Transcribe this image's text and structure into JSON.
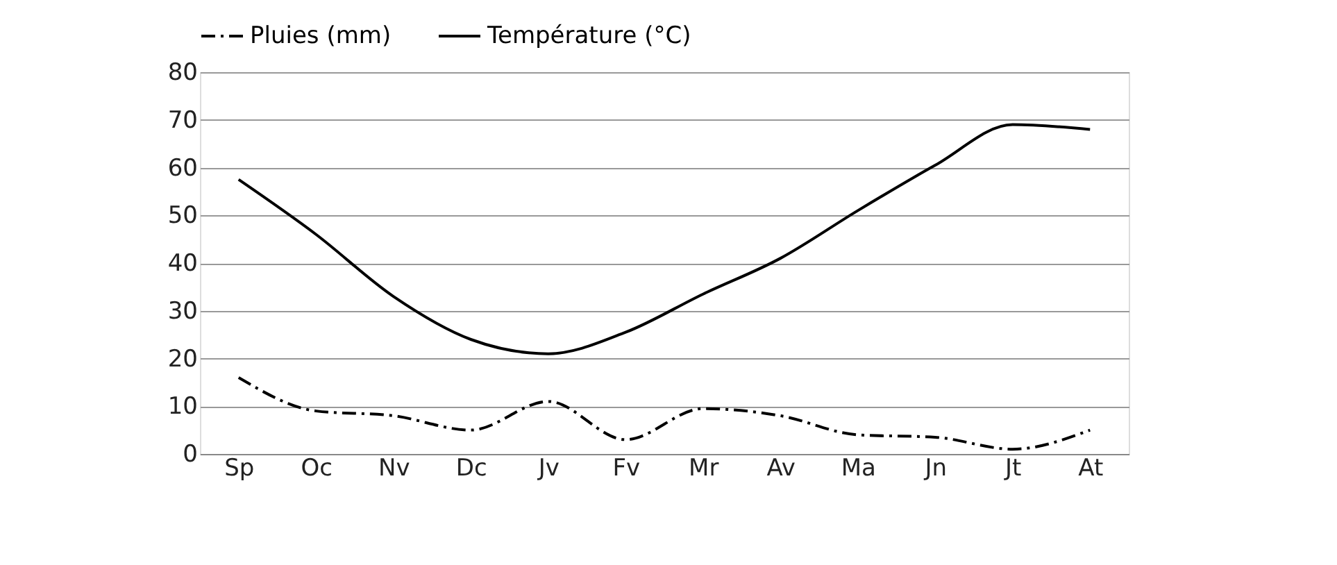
{
  "chart_data": {
    "type": "line",
    "categories": [
      "Sp",
      "Oc",
      "Nv",
      "Dc",
      "Jv",
      "Fv",
      "Mr",
      "Av",
      "Ma",
      "Jn",
      "Jt",
      "At"
    ],
    "series": [
      {
        "name": "Pluies (mm)",
        "color": "#000000",
        "line_style": "dashed",
        "values": [
          16,
          9,
          8,
          5,
          11,
          3,
          9.5,
          8,
          4,
          3.5,
          1,
          5
        ]
      },
      {
        "name": "Température (°C)",
        "color": "#000000",
        "line_style": "solid",
        "values": [
          57.5,
          46,
          33,
          24,
          21,
          25.5,
          33.5,
          41,
          51,
          60.5,
          69,
          68
        ]
      }
    ],
    "ylim": [
      0,
      80
    ],
    "yticks": [
      0,
      10,
      20,
      30,
      40,
      50,
      60,
      70,
      80
    ],
    "grid": "y",
    "legend": "top",
    "marker": "none"
  }
}
